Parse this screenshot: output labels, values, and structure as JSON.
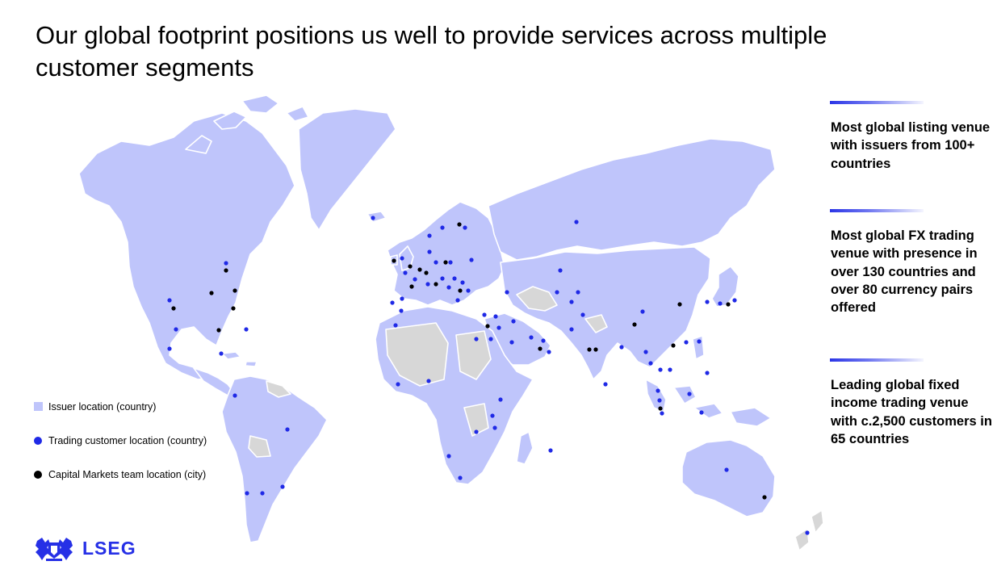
{
  "title": "Our global footprint positions us well to provide services across multiple customer segments",
  "colors": {
    "issuer": "#bfc5fb",
    "no_presence": "#d7d7d7",
    "trading": "#1f29e6",
    "capital_markets": "#000000",
    "accent": "#2630e6"
  },
  "legend": {
    "issuer": "Issuer location (country)",
    "trading": "Trading customer location (country)",
    "capital": "Capital Markets team location (city)"
  },
  "stats": [
    "Most global listing venue with issuers from 100+ countries",
    "Most global FX trading venue with presence in over 130 countries and over 80 currency pairs offered",
    "Leading global fixed income trading venue with c.2,500 customers in 65 countries"
  ],
  "logo": {
    "text": "LSEG",
    "icon": "lion-crest-icon"
  }
}
